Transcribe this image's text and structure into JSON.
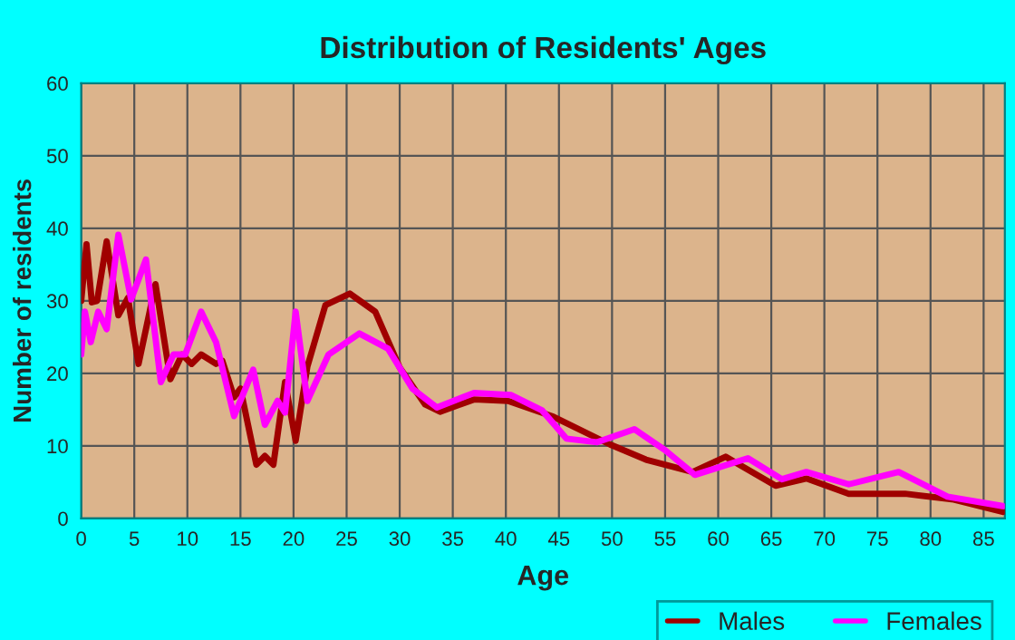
{
  "chart_data": {
    "type": "line",
    "title": "Distribution of Residents' Ages",
    "xlabel": "Age",
    "ylabel": "Number of residents",
    "xlim": [
      0,
      87
    ],
    "xticks": [
      0,
      5,
      10,
      15,
      20,
      25,
      30,
      35,
      40,
      45,
      50,
      55,
      60,
      65,
      70,
      75,
      80,
      85
    ],
    "ylim": [
      0,
      60
    ],
    "yticks": [
      0,
      10,
      20,
      30,
      40,
      50,
      60
    ],
    "grid": true,
    "legend": "bottom right",
    "marker": "none",
    "line_style": "solid",
    "series": [
      {
        "name": "Males",
        "color": "#a00000",
        "x": [
          0,
          0.5,
          1,
          1.5,
          2.4,
          3.5,
          4.4,
          5.4,
          7,
          8.4,
          9.5,
          10.4,
          11.3,
          12.7,
          13.3,
          14.4,
          15,
          16.5,
          17.3,
          18.1,
          19.2,
          20.2,
          21.3,
          23,
          25.3,
          27.7,
          30,
          32.4,
          33.8,
          37,
          40.2,
          44.5,
          49.8,
          53.2,
          57.6,
          60.7,
          65.4,
          68.3,
          72.3,
          77.6,
          82.2,
          86.8
        ],
        "values": [
          30,
          37.8,
          29.8,
          30,
          38.2,
          28,
          30.4,
          21.3,
          32.3,
          19.2,
          22.6,
          21.3,
          22.6,
          21.3,
          21.7,
          16.7,
          17.9,
          7.4,
          8.6,
          7.4,
          18.8,
          10.7,
          20.9,
          29.4,
          31,
          28.5,
          20.8,
          15.7,
          14.7,
          16.4,
          16.2,
          14,
          10.2,
          8.1,
          6.4,
          8.5,
          4.5,
          5.5,
          3.4,
          3.4,
          2.6,
          0.9
        ]
      },
      {
        "name": "Females",
        "color": "#ff00ff",
        "x": [
          0,
          0.35,
          0.9,
          1.6,
          2.4,
          3.5,
          4.7,
          6.1,
          7.5,
          8.7,
          9.8,
          11.3,
          12.7,
          14.4,
          16.2,
          17.3,
          18.5,
          19.2,
          20.2,
          21.3,
          23.3,
          26.2,
          28.9,
          31.2,
          33.5,
          37,
          40.5,
          43.4,
          45.7,
          48.6,
          52.1,
          55,
          57.8,
          62.8,
          66,
          68.3,
          72.3,
          77,
          81.6,
          86.8
        ],
        "values": [
          22.6,
          28.5,
          24.3,
          28.5,
          26.1,
          39.1,
          30.2,
          35.7,
          18.8,
          22.6,
          22.6,
          28.5,
          24.3,
          14.1,
          20.5,
          12.9,
          16.2,
          14.6,
          28.5,
          16.2,
          22.6,
          25.5,
          23.4,
          17.9,
          15.3,
          17.3,
          17,
          14.9,
          11,
          10.5,
          12.3,
          9.4,
          6,
          8.3,
          5.4,
          6.4,
          4.7,
          6.4,
          3,
          1.7
        ]
      }
    ]
  }
}
